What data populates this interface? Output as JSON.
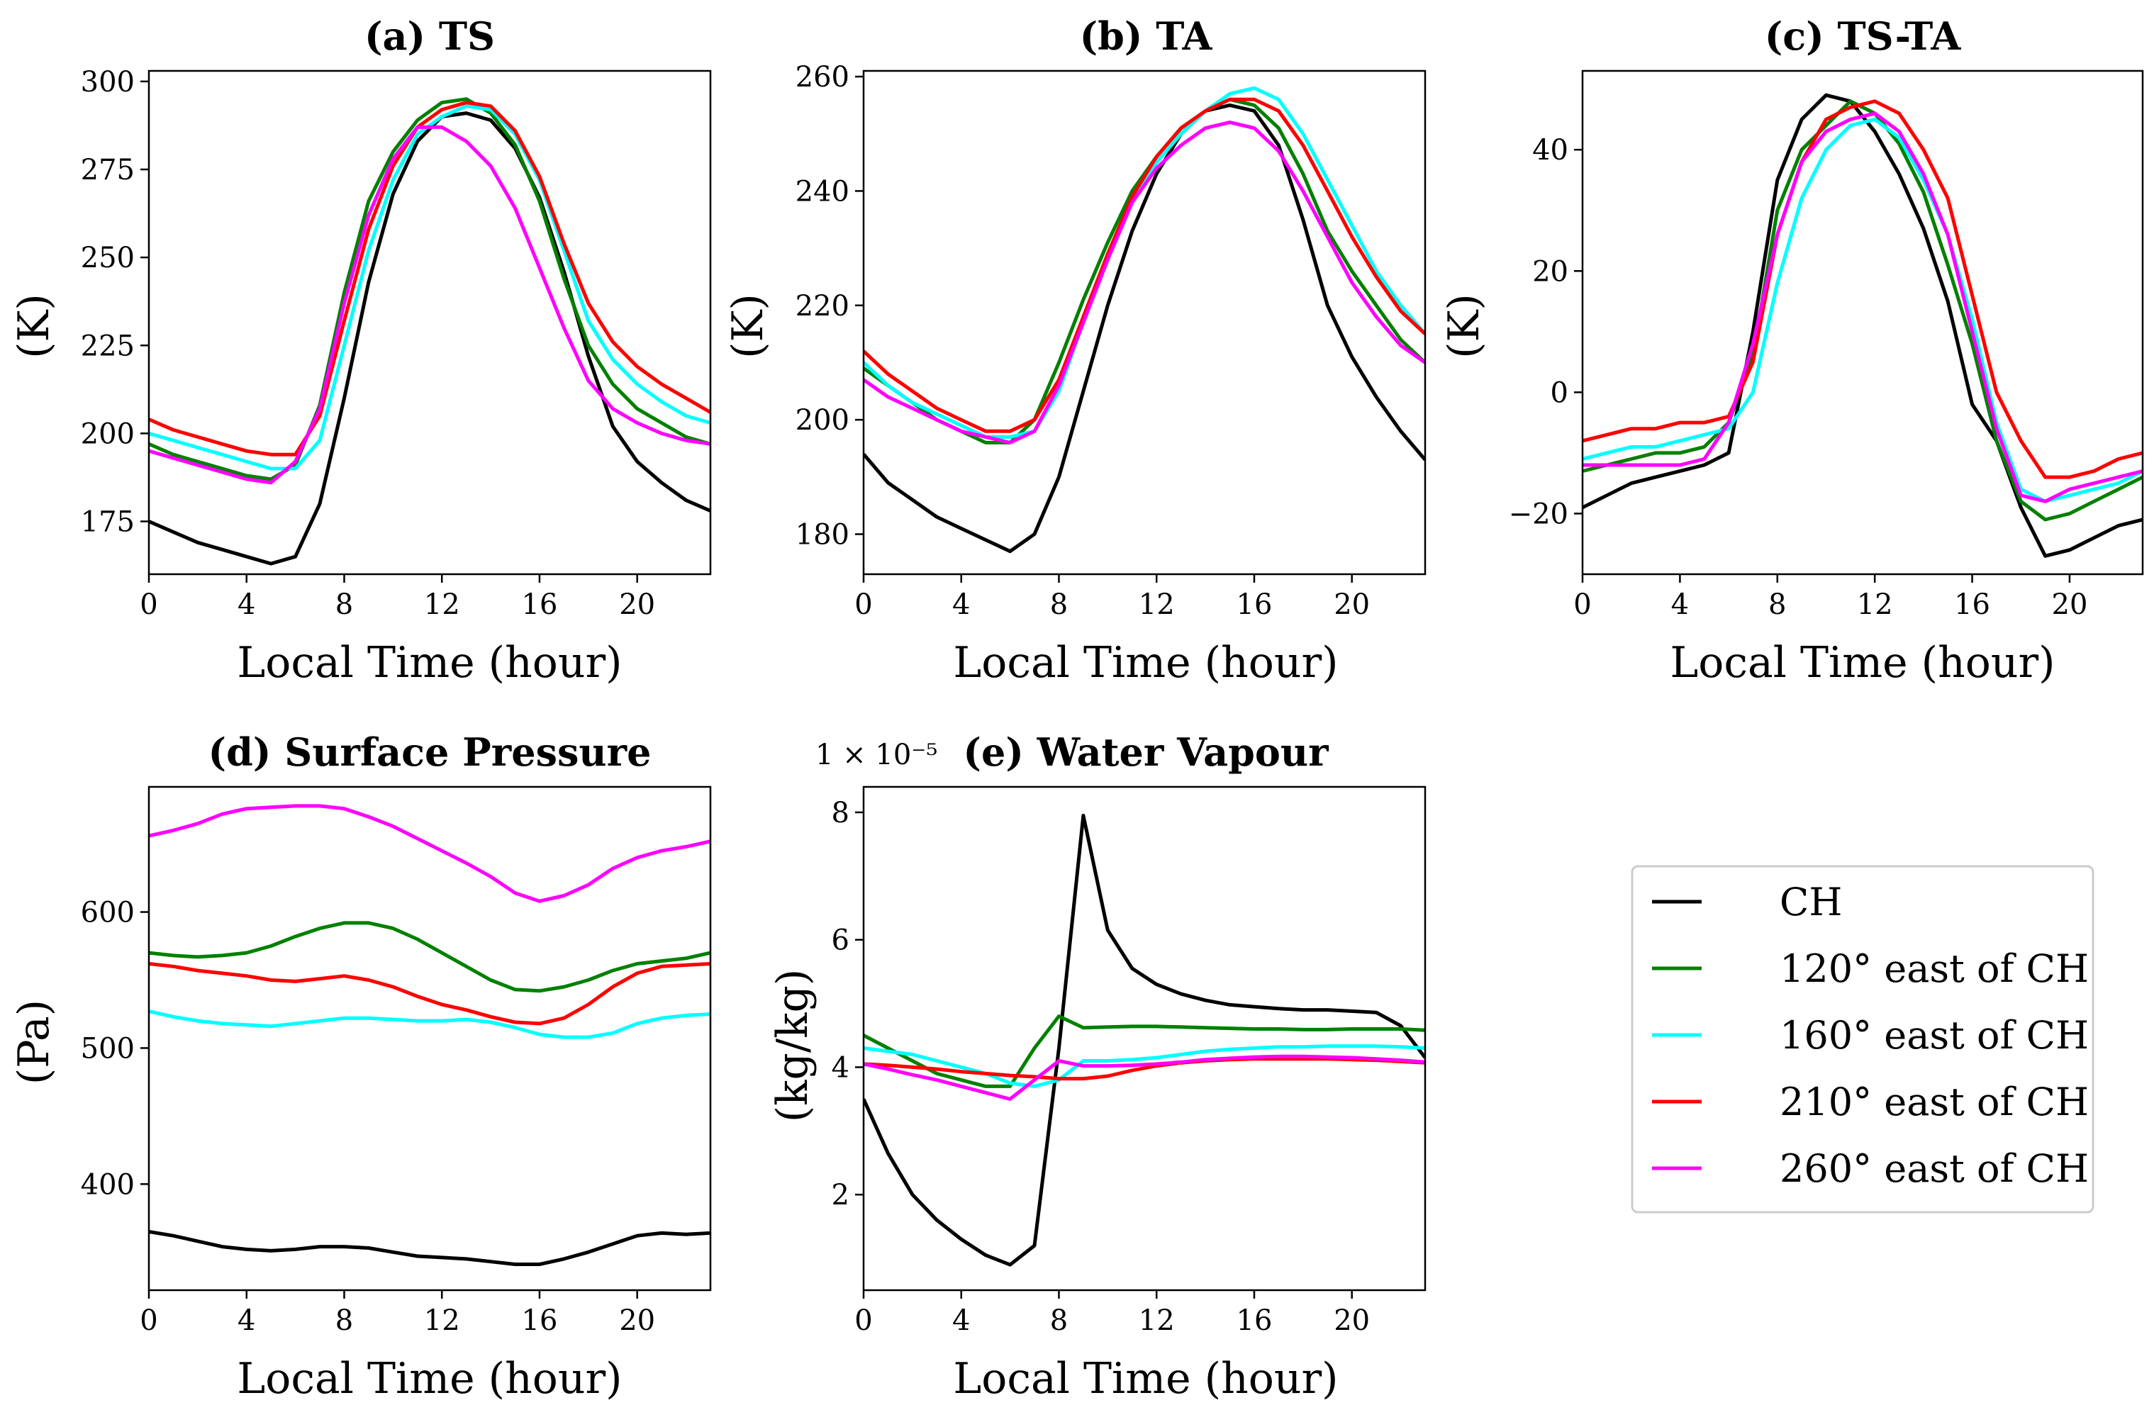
{
  "legend": {
    "placement": "right of bottom row",
    "entries": [
      "CH",
      "120° east of CH",
      "160° east of CH",
      "210° east of CH",
      "260° east of CH"
    ]
  },
  "series_colors": {
    "CH": "#000000",
    "120° east of CH": "#008000",
    "160° east of CH": "#00ffff",
    "210° east of CH": "#ff0000",
    "260° east of CH": "#ff00ff"
  },
  "chart_data": [
    {
      "id": "a",
      "type": "line",
      "title": "(a) TS",
      "xlabel": "Local Time (hour)",
      "ylabel": "(K)",
      "xlim": [
        0,
        23
      ],
      "ylim": [
        160,
        303
      ],
      "xticks": [
        0,
        4,
        8,
        12,
        16,
        20
      ],
      "xtick_labels": [
        "0",
        "4",
        "8",
        "12",
        "16",
        "20"
      ],
      "yticks": [
        175,
        200,
        225,
        250,
        275,
        300
      ],
      "ytick_labels": [
        "175",
        "200",
        "225",
        "250",
        "275",
        "300"
      ],
      "x": [
        0,
        1,
        2,
        3,
        4,
        5,
        6,
        7,
        8,
        9,
        10,
        11,
        12,
        13,
        14,
        15,
        16,
        17,
        18,
        19,
        20,
        21,
        22,
        23
      ],
      "series": [
        {
          "name": "CH",
          "values": [
            175,
            172,
            169,
            167,
            165,
            163,
            165,
            180,
            210,
            243,
            268,
            283,
            290,
            291,
            289,
            281,
            267,
            246,
            222,
            202,
            192,
            186,
            181,
            178
          ]
        },
        {
          "name": "120° east of CH",
          "values": [
            197,
            194,
            192,
            190,
            188,
            187,
            191,
            208,
            240,
            266,
            280,
            289,
            294,
            295,
            291,
            282,
            266,
            244,
            225,
            214,
            207,
            203,
            199,
            197
          ]
        },
        {
          "name": "160° east of CH",
          "values": [
            200,
            198,
            196,
            194,
            192,
            190,
            190,
            198,
            225,
            252,
            272,
            285,
            290,
            293,
            292,
            285,
            272,
            252,
            232,
            221,
            214,
            209,
            205,
            203
          ]
        },
        {
          "name": "210° east of CH",
          "values": [
            204,
            201,
            199,
            197,
            195,
            194,
            194,
            205,
            232,
            258,
            276,
            287,
            292,
            294,
            293,
            286,
            273,
            254,
            237,
            226,
            219,
            214,
            210,
            206
          ]
        },
        {
          "name": "260° east of CH",
          "values": [
            195,
            193,
            191,
            189,
            187,
            186,
            192,
            207,
            237,
            262,
            278,
            287,
            287,
            283,
            276,
            264,
            247,
            230,
            215,
            207,
            203,
            200,
            198,
            197
          ]
        }
      ]
    },
    {
      "id": "b",
      "type": "line",
      "title": "(b) TA",
      "xlabel": "Local Time (hour)",
      "ylabel": "(K)",
      "xlim": [
        0,
        23
      ],
      "ylim": [
        173,
        261
      ],
      "xticks": [
        0,
        4,
        8,
        12,
        16,
        20
      ],
      "xtick_labels": [
        "0",
        "4",
        "8",
        "12",
        "16",
        "20"
      ],
      "yticks": [
        180,
        200,
        220,
        240,
        260
      ],
      "ytick_labels": [
        "180",
        "200",
        "220",
        "240",
        "260"
      ],
      "x": [
        0,
        1,
        2,
        3,
        4,
        5,
        6,
        7,
        8,
        9,
        10,
        11,
        12,
        13,
        14,
        15,
        16,
        17,
        18,
        19,
        20,
        21,
        22,
        23
      ],
      "series": [
        {
          "name": "CH",
          "values": [
            194,
            189,
            186,
            183,
            181,
            179,
            177,
            180,
            190,
            205,
            220,
            233,
            243,
            250,
            254,
            255,
            254,
            248,
            235,
            220,
            211,
            204,
            198,
            193
          ]
        },
        {
          "name": "120° east of CH",
          "values": [
            209,
            206,
            203,
            200,
            198,
            196,
            196,
            200,
            210,
            221,
            231,
            240,
            246,
            251,
            254,
            256,
            255,
            251,
            243,
            233,
            226,
            220,
            214,
            210
          ]
        },
        {
          "name": "160° east of CH",
          "values": [
            210,
            206,
            203,
            201,
            199,
            197,
            197,
            198,
            205,
            217,
            228,
            238,
            245,
            250,
            254,
            257,
            258,
            256,
            250,
            242,
            234,
            226,
            220,
            215
          ]
        },
        {
          "name": "210° east of CH",
          "values": [
            212,
            208,
            205,
            202,
            200,
            198,
            198,
            200,
            207,
            218,
            229,
            239,
            246,
            251,
            254,
            256,
            256,
            254,
            248,
            240,
            232,
            225,
            219,
            215
          ]
        },
        {
          "name": "260° east of CH",
          "values": [
            207,
            204,
            202,
            200,
            198,
            197,
            196,
            198,
            206,
            217,
            228,
            238,
            244,
            248,
            251,
            252,
            251,
            247,
            240,
            232,
            224,
            218,
            213,
            210
          ]
        }
      ]
    },
    {
      "id": "c",
      "type": "line",
      "title": "(c) TS-TA",
      "xlabel": "Local Time (hour)",
      "ylabel": "(K)",
      "xlim": [
        0,
        23
      ],
      "ylim": [
        -30,
        53
      ],
      "xticks": [
        0,
        4,
        8,
        12,
        16,
        20
      ],
      "xtick_labels": [
        "0",
        "4",
        "8",
        "12",
        "16",
        "20"
      ],
      "yticks": [
        -20,
        0,
        20,
        40
      ],
      "ytick_labels": [
        "−20",
        "0",
        "20",
        "40"
      ],
      "x": [
        0,
        1,
        2,
        3,
        4,
        5,
        6,
        7,
        8,
        9,
        10,
        11,
        12,
        13,
        14,
        15,
        16,
        17,
        18,
        19,
        20,
        21,
        22,
        23
      ],
      "series": [
        {
          "name": "CH",
          "values": [
            -19,
            -17,
            -15,
            -14,
            -13,
            -12,
            -10,
            10,
            35,
            45,
            49,
            48,
            43,
            36,
            27,
            15,
            -2,
            -8,
            -19,
            -27,
            -26,
            -24,
            -22,
            -21
          ]
        },
        {
          "name": "120° east of CH",
          "values": [
            -13,
            -12,
            -11,
            -10,
            -10,
            -9,
            -5,
            6,
            30,
            40,
            44,
            48,
            46,
            41,
            33,
            21,
            8,
            -8,
            -18,
            -21,
            -20,
            -18,
            -16,
            -14
          ]
        },
        {
          "name": "160° east of CH",
          "values": [
            -11,
            -10,
            -9,
            -9,
            -8,
            -7,
            -6,
            0,
            18,
            32,
            40,
            44,
            45,
            42,
            35,
            26,
            12,
            -5,
            -16,
            -18,
            -17,
            -16,
            -15,
            -13
          ]
        },
        {
          "name": "210° east of CH",
          "values": [
            -8,
            -7,
            -6,
            -6,
            -5,
            -5,
            -4,
            5,
            26,
            38,
            45,
            47,
            48,
            46,
            40,
            32,
            16,
            0,
            -8,
            -14,
            -14,
            -13,
            -11,
            -10
          ]
        },
        {
          "name": "260° east of CH",
          "values": [
            -12,
            -12,
            -12,
            -12,
            -12,
            -11,
            -5,
            8,
            26,
            38,
            43,
            45,
            46,
            43,
            36,
            26,
            10,
            -6,
            -17,
            -18,
            -16,
            -15,
            -14,
            -13
          ]
        }
      ]
    },
    {
      "id": "d",
      "type": "line",
      "title": "(d) Surface Pressure",
      "xlabel": "Local Time (hour)",
      "ylabel": "(Pa)",
      "xlim": [
        0,
        23
      ],
      "ylim": [
        322,
        692
      ],
      "xticks": [
        0,
        4,
        8,
        12,
        16,
        20
      ],
      "xtick_labels": [
        "0",
        "4",
        "8",
        "12",
        "16",
        "20"
      ],
      "yticks": [
        400,
        500,
        600
      ],
      "ytick_labels": [
        "400",
        "500",
        "600"
      ],
      "x": [
        0,
        1,
        2,
        3,
        4,
        5,
        6,
        7,
        8,
        9,
        10,
        11,
        12,
        13,
        14,
        15,
        16,
        17,
        18,
        19,
        20,
        21,
        22,
        23
      ],
      "series": [
        {
          "name": "CH",
          "values": [
            365,
            362,
            358,
            354,
            352,
            351,
            352,
            354,
            354,
            353,
            350,
            347,
            346,
            345,
            343,
            341,
            341,
            345,
            350,
            356,
            362,
            364,
            363,
            364
          ]
        },
        {
          "name": "120° east of CH",
          "values": [
            570,
            568,
            567,
            568,
            570,
            575,
            582,
            588,
            592,
            592,
            588,
            580,
            570,
            560,
            550,
            543,
            542,
            545,
            550,
            557,
            562,
            564,
            566,
            570
          ]
        },
        {
          "name": "160° east of CH",
          "values": [
            527,
            523,
            520,
            518,
            517,
            516,
            518,
            520,
            522,
            522,
            521,
            520,
            520,
            521,
            519,
            515,
            510,
            508,
            508,
            511,
            518,
            522,
            524,
            525
          ]
        },
        {
          "name": "210° east of CH",
          "values": [
            562,
            560,
            557,
            555,
            553,
            550,
            549,
            551,
            553,
            550,
            545,
            538,
            532,
            528,
            523,
            519,
            518,
            522,
            532,
            545,
            555,
            560,
            561,
            562
          ]
        },
        {
          "name": "260° east of CH",
          "values": [
            656,
            660,
            665,
            672,
            676,
            677,
            678,
            678,
            676,
            670,
            663,
            654,
            645,
            636,
            626,
            614,
            608,
            612,
            620,
            632,
            640,
            645,
            648,
            652
          ]
        }
      ]
    },
    {
      "id": "e",
      "type": "line",
      "title": "(e) Water Vapour",
      "offset_label": "1 × 10⁻⁵",
      "xlabel": "Local Time (hour)",
      "ylabel": "(kg/kg)",
      "xlim": [
        0,
        23
      ],
      "ylim": [
        0.5,
        8.4
      ],
      "xticks": [
        0,
        4,
        8,
        12,
        16,
        20
      ],
      "xtick_labels": [
        "0",
        "4",
        "8",
        "12",
        "16",
        "20"
      ],
      "yticks": [
        2,
        4,
        6,
        8
      ],
      "ytick_labels": [
        "2",
        "4",
        "6",
        "8"
      ],
      "x": [
        0,
        1,
        2,
        3,
        4,
        5,
        6,
        7,
        8,
        9,
        10,
        11,
        12,
        13,
        14,
        15,
        16,
        17,
        18,
        19,
        20,
        21,
        22,
        23
      ],
      "series": [
        {
          "name": "CH",
          "values": [
            3.5,
            2.65,
            2.0,
            1.6,
            1.3,
            1.05,
            0.9,
            1.2,
            4.3,
            7.95,
            6.15,
            5.55,
            5.3,
            5.15,
            5.05,
            4.98,
            4.95,
            4.92,
            4.9,
            4.9,
            4.88,
            4.86,
            4.65,
            4.15
          ]
        },
        {
          "name": "120° east of CH",
          "values": [
            4.5,
            4.3,
            4.1,
            3.9,
            3.8,
            3.7,
            3.7,
            4.3,
            4.8,
            4.62,
            4.63,
            4.64,
            4.64,
            4.63,
            4.62,
            4.61,
            4.6,
            4.6,
            4.59,
            4.59,
            4.6,
            4.6,
            4.6,
            4.58
          ]
        },
        {
          "name": "160° east of CH",
          "values": [
            4.3,
            4.25,
            4.2,
            4.1,
            4.0,
            3.9,
            3.75,
            3.7,
            3.8,
            4.1,
            4.1,
            4.12,
            4.15,
            4.2,
            4.25,
            4.28,
            4.3,
            4.32,
            4.32,
            4.33,
            4.33,
            4.33,
            4.32,
            4.3
          ]
        },
        {
          "name": "210° east of CH",
          "values": [
            4.05,
            4.03,
            4.0,
            3.97,
            3.93,
            3.9,
            3.87,
            3.85,
            3.82,
            3.82,
            3.86,
            3.95,
            4.02,
            4.07,
            4.1,
            4.12,
            4.13,
            4.13,
            4.13,
            4.13,
            4.12,
            4.11,
            4.09,
            4.07
          ]
        },
        {
          "name": "260° east of CH",
          "values": [
            4.05,
            3.97,
            3.88,
            3.8,
            3.7,
            3.6,
            3.5,
            3.8,
            4.1,
            4.02,
            4.02,
            4.03,
            4.05,
            4.08,
            4.12,
            4.14,
            4.16,
            4.17,
            4.17,
            4.16,
            4.15,
            4.13,
            4.11,
            4.08
          ]
        }
      ]
    }
  ]
}
